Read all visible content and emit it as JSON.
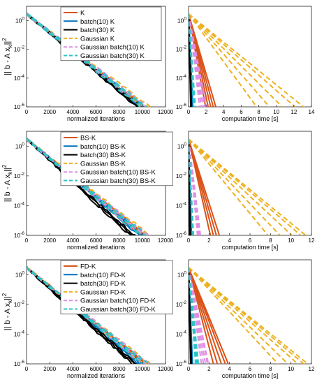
{
  "figure": {
    "ylabel_main": "|| b - A x",
    "ylabel_sub": "k",
    "ylabel_exp": "2"
  },
  "colors": {
    "K": "#d95319",
    "batch10": "#0072bd",
    "batch30": "#000000",
    "gauss": "#edb120",
    "gbatch10": "#dd8fe6",
    "gbatch30": "#2ec4c4"
  },
  "chart_data": [
    {
      "type": "line",
      "row": 0,
      "panel": "left",
      "xlabel": "normalized iterations",
      "xlim": [
        0,
        12000
      ],
      "ylim": [
        1e-06,
        10
      ],
      "yscale": "log",
      "xticks": [
        "0",
        "2000",
        "4000",
        "6000",
        "8000",
        "10000",
        "12000"
      ],
      "yticks": [
        "10^0",
        "10^-2",
        "10^-4",
        "10^-6"
      ],
      "legend": [
        "K",
        "batch(10) K",
        "batch(30) K",
        "Gaussian K",
        "Gaussian batch(10) K",
        "Gaussian batch(30) K"
      ],
      "series": [
        {
          "name": "K",
          "end_x": [
            10100,
            10300,
            10500
          ]
        },
        {
          "name": "batch(10) K",
          "end_x": [
            10000,
            10200,
            10400
          ]
        },
        {
          "name": "batch(30) K",
          "end_x": [
            9800,
            10000,
            10200
          ]
        },
        {
          "name": "Gaussian K",
          "end_x": [
            10400,
            10700,
            11000
          ]
        },
        {
          "name": "Gaussian batch(10) K",
          "end_x": [
            10200,
            10500,
            10800
          ]
        },
        {
          "name": "Gaussian batch(30) K",
          "end_x": [
            10100,
            10400,
            10700
          ]
        }
      ]
    },
    {
      "type": "line",
      "row": 0,
      "panel": "right",
      "xlabel": "computation time [s]",
      "xlim": [
        0,
        14
      ],
      "ylim": [
        1e-06,
        10
      ],
      "yscale": "log",
      "xticks": [
        "0",
        "2",
        "4",
        "6",
        "8",
        "10",
        "12",
        "14"
      ],
      "yticks": [
        "10^0",
        "10^-2",
        "10^-4",
        "10^-6"
      ],
      "series": [
        {
          "name": "K",
          "end_x": [
            2.0,
            2.3,
            2.6,
            2.9,
            3.2
          ]
        },
        {
          "name": "batch(10) K",
          "end_x": [
            0.4,
            0.45,
            0.5
          ]
        },
        {
          "name": "batch(30) K",
          "end_x": [
            0.25,
            0.3,
            0.35
          ]
        },
        {
          "name": "Gaussian K",
          "end_x": [
            8,
            9.5,
            11,
            12.5,
            13.5
          ]
        },
        {
          "name": "Gaussian batch(10) K",
          "end_x": [
            1.3,
            1.5,
            1.7,
            1.9,
            2.1
          ]
        },
        {
          "name": "Gaussian batch(30) K",
          "end_x": [
            0.6,
            0.7,
            0.8
          ]
        }
      ]
    },
    {
      "type": "line",
      "row": 1,
      "panel": "left",
      "xlabel": "normalized iterations",
      "xlim": [
        0,
        12000
      ],
      "ylim": [
        1e-06,
        10
      ],
      "yscale": "log",
      "xticks": [
        "0",
        "2000",
        "4000",
        "6000",
        "8000",
        "10000",
        "12000"
      ],
      "yticks": [
        "10^0",
        "10^-2",
        "10^-4",
        "10^-6"
      ],
      "legend": [
        "BS-K",
        "batch(10) BS-K",
        "batch(30) BS-K",
        "Gaussian BS-K",
        "Gaussian batch(10) BS-K",
        "Gaussian batch(30) BS-K"
      ],
      "series": [
        {
          "name": "BS-K",
          "end_x": [
            10200,
            10400,
            10600
          ]
        },
        {
          "name": "batch(10) BS-K",
          "end_x": [
            10000,
            10200,
            10400
          ]
        },
        {
          "name": "batch(30) BS-K",
          "end_x": [
            9200,
            9400,
            9600
          ]
        },
        {
          "name": "Gaussian BS-K",
          "end_x": [
            10600,
            10800,
            11000
          ]
        },
        {
          "name": "Gaussian batch(10) BS-K",
          "end_x": [
            10200,
            10500,
            10800
          ]
        },
        {
          "name": "Gaussian batch(30) BS-K",
          "end_x": [
            10100,
            10400,
            10700
          ]
        }
      ]
    },
    {
      "type": "line",
      "row": 1,
      "panel": "right",
      "xlabel": "computation time [s]",
      "xlim": [
        0,
        12
      ],
      "ylim": [
        1e-06,
        10
      ],
      "yscale": "log",
      "xticks": [
        "0",
        "2",
        "4",
        "6",
        "8",
        "10",
        "12"
      ],
      "yticks": [
        "10^0",
        "10^-2",
        "10^-4",
        "10^-6"
      ],
      "series": [
        {
          "name": "BS-K",
          "end_x": [
            2.2,
            2.5,
            2.8,
            3.1
          ]
        },
        {
          "name": "batch(10) BS-K",
          "end_x": [
            0.2,
            0.25,
            0.3
          ]
        },
        {
          "name": "batch(30) BS-K",
          "end_x": [
            0.12,
            0.15,
            0.18
          ]
        },
        {
          "name": "Gaussian BS-K",
          "end_x": [
            8,
            9.2,
            10.4,
            11.3,
            11.8
          ]
        },
        {
          "name": "Gaussian batch(10) BS-K",
          "end_x": [
            0.9,
            1.0,
            1.1,
            1.2
          ]
        },
        {
          "name": "Gaussian batch(30) BS-K",
          "end_x": [
            0.4,
            0.45,
            0.5
          ]
        }
      ]
    },
    {
      "type": "line",
      "row": 2,
      "panel": "left",
      "xlabel": "normalized iterations",
      "xlim": [
        0,
        12000
      ],
      "ylim": [
        1e-06,
        10
      ],
      "yscale": "log",
      "xticks": [
        "0",
        "2000",
        "4000",
        "6000",
        "8000",
        "10000",
        "12000"
      ],
      "yticks": [
        "10^0",
        "10^-2",
        "10^-4",
        "10^-6"
      ],
      "legend": [
        "FD-K",
        "batch(10) FD-K",
        "batch(30) FD-K",
        "Gaussian FD-K",
        "Gaussian batch(10) FD-K",
        "Gaussian batch(30) FD-K"
      ],
      "series": [
        {
          "name": "FD-K",
          "end_x": [
            10300,
            10500,
            10700
          ]
        },
        {
          "name": "batch(10) FD-K",
          "end_x": [
            10000,
            10200,
            10400
          ]
        },
        {
          "name": "batch(30) FD-K",
          "end_x": [
            9400,
            9600,
            9800
          ]
        },
        {
          "name": "Gaussian FD-K",
          "end_x": [
            10400,
            10700,
            11000
          ]
        },
        {
          "name": "Gaussian batch(10) FD-K",
          "end_x": [
            10300,
            10600,
            10900
          ]
        },
        {
          "name": "Gaussian batch(30) FD-K",
          "end_x": [
            10200,
            10500,
            10800
          ]
        }
      ]
    },
    {
      "type": "line",
      "row": 2,
      "panel": "right",
      "xlabel": "computation time [s]",
      "xlim": [
        0,
        12
      ],
      "ylim": [
        1e-06,
        10
      ],
      "yscale": "log",
      "xticks": [
        "0",
        "2",
        "4",
        "6",
        "8",
        "10",
        "12"
      ],
      "yticks": [
        "10^0",
        "10^-2",
        "10^-4",
        "10^-6"
      ],
      "series": [
        {
          "name": "FD-K",
          "end_x": [
            2.5,
            2.9,
            3.3,
            3.7,
            4.0
          ]
        },
        {
          "name": "batch(10) FD-K",
          "end_x": [
            0.3,
            0.35,
            0.4
          ]
        },
        {
          "name": "batch(30) FD-K",
          "end_x": [
            0.2,
            0.25,
            0.3
          ]
        },
        {
          "name": "Gaussian FD-K",
          "end_x": [
            9,
            10,
            11,
            11.6,
            12
          ]
        },
        {
          "name": "Gaussian batch(10) FD-K",
          "end_x": [
            1.3,
            1.5,
            1.7,
            1.9,
            2.0
          ]
        },
        {
          "name": "Gaussian batch(30) FD-K",
          "end_x": [
            0.7,
            0.8,
            0.9,
            1.0
          ]
        }
      ]
    }
  ]
}
